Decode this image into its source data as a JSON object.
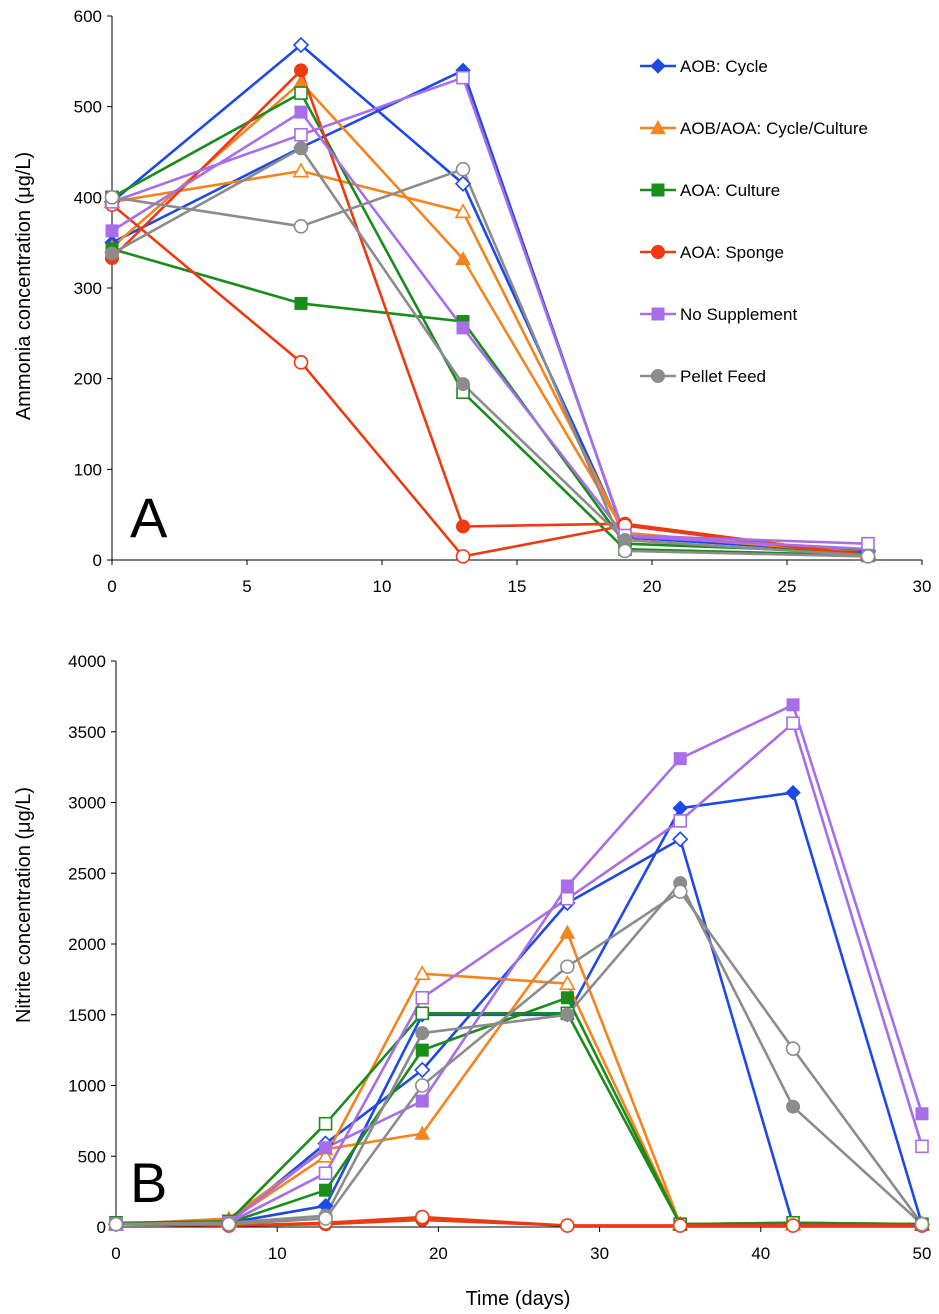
{
  "chart_data": [
    {
      "type": "line",
      "panel_label": "A",
      "ylabel": "Ammonia concentration (μg/L)",
      "xlabel": "",
      "xlim": [
        0,
        30
      ],
      "ylim": [
        0,
        600
      ],
      "x_ticks": [
        "0",
        "5",
        "10",
        "15",
        "20",
        "25",
        "30"
      ],
      "y_ticks": [
        "0",
        "100",
        "200",
        "300",
        "400",
        "500",
        "600"
      ],
      "grid": false,
      "legend_position": "top-right",
      "legend": [
        {
          "label": "AOB: Cycle",
          "color": "#1f49e6",
          "marker": "diamond"
        },
        {
          "label": "AOB/AOA: Cycle/Culture",
          "color": "#f5841f",
          "marker": "triangle"
        },
        {
          "label": "AOA: Culture",
          "color": "#1a8c1a",
          "marker": "square"
        },
        {
          "label": "AOA: Sponge",
          "color": "#ee3a12",
          "marker": "circle"
        },
        {
          "label": "No Supplement",
          "color": "#a86ee8",
          "marker": "square"
        },
        {
          "label": "Pellet Feed",
          "color": "#8c8c8c",
          "marker": "circle"
        }
      ],
      "series": [
        {
          "color": "#1f49e6",
          "marker": "diamond",
          "filled": true,
          "x": [
            0,
            7,
            13,
            19,
            28
          ],
          "y": [
            350,
            455,
            540,
            25,
            8
          ]
        },
        {
          "color": "#1f49e6",
          "marker": "diamond",
          "filled": false,
          "x": [
            0,
            7,
            13,
            19,
            28
          ],
          "y": [
            395,
            568,
            415,
            25,
            10
          ]
        },
        {
          "color": "#f5841f",
          "marker": "triangle",
          "filled": true,
          "x": [
            0,
            7,
            13,
            19,
            28
          ],
          "y": [
            345,
            527,
            332,
            30,
            7
          ]
        },
        {
          "color": "#f5841f",
          "marker": "triangle",
          "filled": false,
          "x": [
            0,
            7,
            13,
            19,
            28
          ],
          "y": [
            395,
            429,
            384,
            28,
            8
          ]
        },
        {
          "color": "#1a8c1a",
          "marker": "square",
          "filled": true,
          "x": [
            0,
            7,
            13,
            19,
            28
          ],
          "y": [
            343,
            283,
            263,
            18,
            8
          ]
        },
        {
          "color": "#1a8c1a",
          "marker": "square",
          "filled": false,
          "x": [
            0,
            7,
            13,
            19,
            28
          ],
          "y": [
            400,
            515,
            185,
            12,
            5
          ]
        },
        {
          "color": "#ee3a12",
          "marker": "circle",
          "filled": true,
          "x": [
            0,
            7,
            13,
            19,
            28
          ],
          "y": [
            333,
            540,
            37,
            40,
            5
          ]
        },
        {
          "color": "#ee3a12",
          "marker": "circle",
          "filled": false,
          "x": [
            0,
            7,
            13,
            19,
            28
          ],
          "y": [
            392,
            218,
            4,
            38,
            4
          ]
        },
        {
          "color": "#a86ee8",
          "marker": "square",
          "filled": true,
          "x": [
            0,
            7,
            13,
            19,
            28
          ],
          "y": [
            363,
            494,
            256,
            26,
            12
          ]
        },
        {
          "color": "#a86ee8",
          "marker": "square",
          "filled": false,
          "x": [
            0,
            7,
            13,
            19,
            28
          ],
          "y": [
            395,
            469,
            532,
            27,
            18
          ]
        },
        {
          "color": "#8c8c8c",
          "marker": "circle",
          "filled": true,
          "x": [
            0,
            7,
            13,
            19,
            28
          ],
          "y": [
            338,
            454,
            194,
            22,
            5
          ]
        },
        {
          "color": "#8c8c8c",
          "marker": "circle",
          "filled": false,
          "x": [
            0,
            7,
            13,
            19,
            28
          ],
          "y": [
            400,
            368,
            431,
            10,
            4
          ]
        }
      ]
    },
    {
      "type": "line",
      "panel_label": "B",
      "ylabel": "Nitrite concentration (μg/L)",
      "xlabel": "Time (days)",
      "xlim": [
        0,
        50
      ],
      "ylim": [
        0,
        4000
      ],
      "x_ticks": [
        "0",
        "10",
        "20",
        "30",
        "40",
        "50"
      ],
      "y_ticks": [
        "0",
        "500",
        "1000",
        "1500",
        "2000",
        "2500",
        "3000",
        "3500",
        "4000"
      ],
      "grid": false,
      "series": [
        {
          "color": "#1f49e6",
          "marker": "diamond",
          "filled": true,
          "x": [
            0,
            7,
            13,
            19,
            28,
            35,
            42,
            50
          ],
          "y": [
            20,
            30,
            150,
            1500,
            1500,
            2960,
            3070,
            20
          ]
        },
        {
          "color": "#1f49e6",
          "marker": "diamond",
          "filled": false,
          "x": [
            0,
            7,
            13,
            19,
            28,
            35,
            42,
            50
          ],
          "y": [
            20,
            30,
            590,
            1110,
            2290,
            2740,
            20,
            20
          ]
        },
        {
          "color": "#f5841f",
          "marker": "triangle",
          "filled": true,
          "x": [
            0,
            7,
            13,
            19,
            28,
            35,
            42,
            50
          ],
          "y": [
            20,
            60,
            550,
            660,
            2080,
            20,
            20,
            20
          ]
        },
        {
          "color": "#f5841f",
          "marker": "triangle",
          "filled": false,
          "x": [
            0,
            7,
            13,
            19,
            28,
            35,
            42,
            50
          ],
          "y": [
            20,
            40,
            500,
            1790,
            1720,
            20,
            20,
            20
          ]
        },
        {
          "color": "#1a8c1a",
          "marker": "square",
          "filled": true,
          "x": [
            0,
            7,
            13,
            19,
            28,
            35,
            42,
            50
          ],
          "y": [
            30,
            30,
            260,
            1250,
            1620,
            20,
            30,
            20
          ]
        },
        {
          "color": "#1a8c1a",
          "marker": "square",
          "filled": false,
          "x": [
            0,
            7,
            13,
            19,
            28,
            35,
            42,
            50
          ],
          "y": [
            30,
            40,
            730,
            1510,
            1510,
            20,
            30,
            20
          ]
        },
        {
          "color": "#ee3a12",
          "marker": "circle",
          "filled": true,
          "x": [
            0,
            7,
            13,
            19,
            28,
            35,
            42,
            50
          ],
          "y": [
            20,
            10,
            20,
            50,
            10,
            10,
            10,
            10
          ]
        },
        {
          "color": "#ee3a12",
          "marker": "circle",
          "filled": false,
          "x": [
            0,
            7,
            13,
            19,
            28,
            35,
            42,
            50
          ],
          "y": [
            20,
            10,
            30,
            70,
            10,
            10,
            10,
            10
          ]
        },
        {
          "color": "#a86ee8",
          "marker": "square",
          "filled": true,
          "x": [
            0,
            7,
            13,
            19,
            28,
            35,
            42,
            50
          ],
          "y": [
            20,
            30,
            560,
            890,
            2410,
            3310,
            3690,
            800
          ]
        },
        {
          "color": "#a86ee8",
          "marker": "square",
          "filled": false,
          "x": [
            0,
            7,
            13,
            19,
            28,
            35,
            42,
            50
          ],
          "y": [
            20,
            30,
            380,
            1620,
            2320,
            2870,
            3560,
            570
          ]
        },
        {
          "color": "#8c8c8c",
          "marker": "circle",
          "filled": true,
          "x": [
            0,
            7,
            13,
            19,
            28,
            35,
            42,
            50
          ],
          "y": [
            20,
            30,
            80,
            1370,
            1500,
            2430,
            850,
            20
          ]
        },
        {
          "color": "#8c8c8c",
          "marker": "circle",
          "filled": false,
          "x": [
            0,
            7,
            13,
            19,
            28,
            35,
            42,
            50
          ],
          "y": [
            20,
            20,
            60,
            1000,
            1840,
            2370,
            1260,
            20
          ]
        }
      ]
    }
  ]
}
